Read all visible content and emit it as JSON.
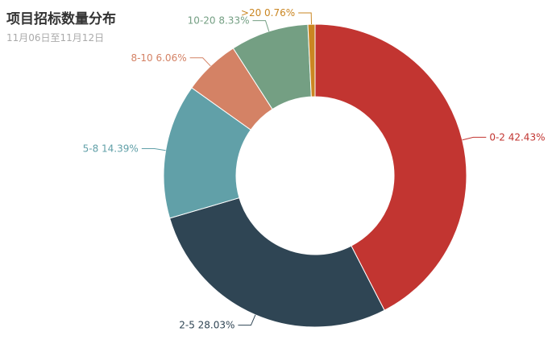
{
  "title": "项目招标数量分布",
  "subtitle": "11月06日至11月12日",
  "chart_data": {
    "type": "pie",
    "title": "项目招标数量分布",
    "subtitle": "11月06日至11月12日",
    "slices": [
      {
        "name": "0-2",
        "value": 42.43,
        "color": "#c23531"
      },
      {
        "name": "2-5",
        "value": 28.03,
        "color": "#2f4554"
      },
      {
        "name": "5-8",
        "value": 14.39,
        "color": "#61a0a8"
      },
      {
        "name": "8-10",
        "value": 6.06,
        "color": "#d48265"
      },
      {
        "name": "10-20",
        "value": 8.33,
        "color": "#749f83"
      },
      {
        "name": ">20",
        "value": 0.76,
        "color": "#ca8622"
      }
    ]
  }
}
